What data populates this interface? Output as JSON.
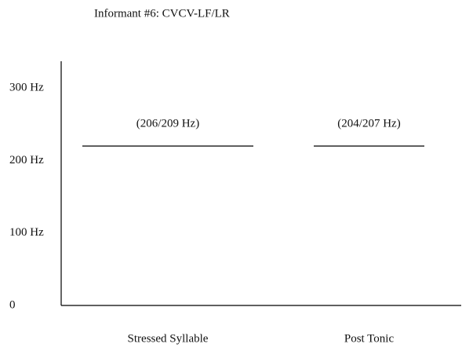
{
  "chart_data": {
    "type": "level",
    "title": "Informant #6: CVCV-LF/LR",
    "categories": [
      "Stressed Syllable",
      "Post Tonic"
    ],
    "values": [
      220,
      220
    ],
    "annotations": [
      "(206/209 Hz)",
      "(204/207 Hz)"
    ],
    "color": "#000000",
    "ylim": [
      0,
      337
    ],
    "yticks": [
      0,
      {
        "value": 100,
        "label": "100 Hz"
      },
      {
        "value": 200,
        "label": "200 Hz"
      },
      {
        "value": 300,
        "label": "300 Hz"
      }
    ],
    "grid": false
  }
}
